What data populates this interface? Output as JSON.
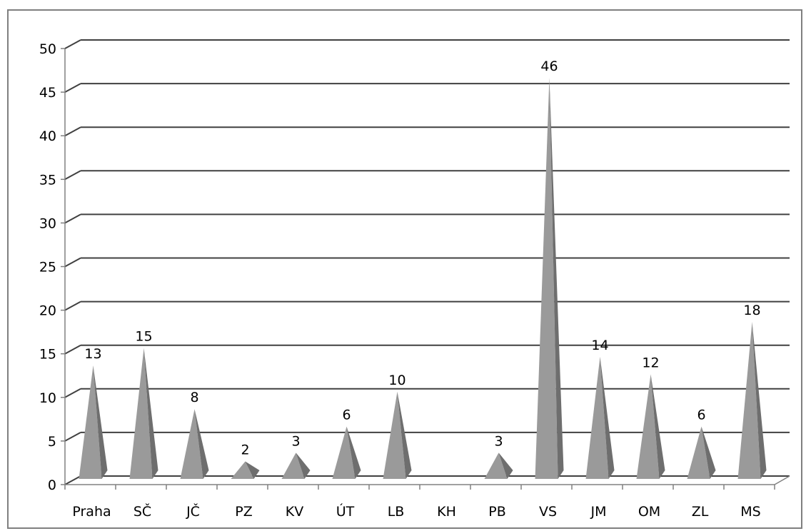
{
  "chart_data": {
    "type": "bar",
    "bar_shape": "pyramid-3d",
    "categories": [
      "Praha",
      "SČ",
      "JČ",
      "PZ",
      "KV",
      "ÚT",
      "LB",
      "KH",
      "PB",
      "VS",
      "JM",
      "OM",
      "ZL",
      "MS"
    ],
    "values": [
      13,
      15,
      8,
      2,
      3,
      6,
      10,
      0,
      3,
      46,
      14,
      12,
      6,
      18
    ],
    "data_labels": [
      "13",
      "15",
      "8",
      "2",
      "3",
      "6",
      "10",
      "",
      "3",
      "46",
      "14",
      "12",
      "6",
      "18"
    ],
    "title": "",
    "xlabel": "",
    "ylabel": "",
    "ylim": [
      0,
      50
    ],
    "yticks": [
      "0",
      "5",
      "10",
      "15",
      "20",
      "25",
      "30",
      "35",
      "40",
      "45",
      "50"
    ],
    "grid": true,
    "legend": "none",
    "colors": {
      "bar_face": "#9a9a9a",
      "bar_side": "#6e6e6e",
      "grid": "#404040",
      "axis": "#808080"
    }
  }
}
